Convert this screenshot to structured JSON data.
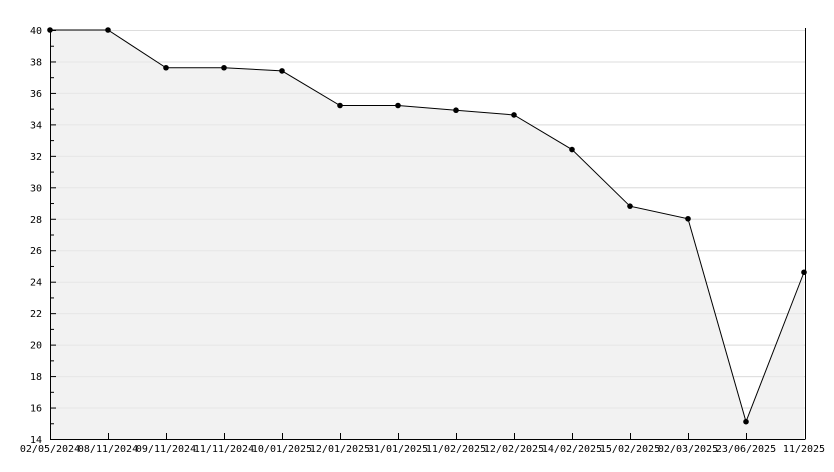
{
  "chart_data": {
    "type": "area",
    "title": "",
    "xlabel": "",
    "ylabel": "",
    "categories": [
      "02/05/2024",
      "08/11/2024",
      "09/11/2024",
      "11/11/2024",
      "10/01/2025",
      "12/01/2025",
      "31/01/2025",
      "11/02/2025",
      "12/02/2025",
      "14/02/2025",
      "15/02/2025",
      "02/03/2025",
      "23/06/2025",
      "11/2025"
    ],
    "values": [
      40,
      40,
      37.6,
      37.6,
      37.4,
      35.2,
      35.2,
      34.9,
      34.6,
      32.4,
      28.8,
      28.0,
      15.1,
      24.6
    ],
    "ylim": [
      14,
      40
    ],
    "yticks": [
      14,
      16,
      18,
      20,
      22,
      24,
      26,
      28,
      30,
      32,
      34,
      36,
      38,
      40
    ],
    "grid": true,
    "colors": {
      "fill": "#f2f2f2",
      "line": "#000000",
      "grid": "#dddddd",
      "marker": "#000000"
    }
  }
}
